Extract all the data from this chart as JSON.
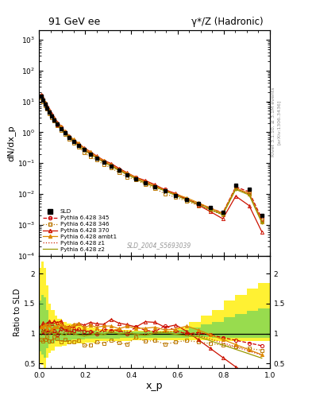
{
  "title_left": "91 GeV ee",
  "title_right": "γ*/Z (Hadronic)",
  "xlabel": "x_p",
  "ylabel_main": "dN/dx_p",
  "ylabel_ratio": "Ratio to SLD",
  "watermark": "SLD_2004_S5693039",
  "right_label_1": "Rivet 3.1.10, ≥ 3.1M events",
  "right_label_2": "[arXiv:1306.3436]",
  "ylim_main_log": [
    -4,
    3
  ],
  "ylim_ratio": [
    0.42,
    2.3
  ],
  "sld_x": [
    0.01,
    0.018,
    0.026,
    0.034,
    0.044,
    0.054,
    0.066,
    0.08,
    0.095,
    0.112,
    0.13,
    0.15,
    0.172,
    0.196,
    0.222,
    0.25,
    0.28,
    0.312,
    0.346,
    0.382,
    0.42,
    0.46,
    0.502,
    0.546,
    0.592,
    0.64,
    0.69,
    0.742,
    0.796,
    0.852,
    0.91,
    0.965
  ],
  "sld_y": [
    14.5,
    11.0,
    8.2,
    6.2,
    4.6,
    3.4,
    2.5,
    1.82,
    1.32,
    0.96,
    0.7,
    0.51,
    0.373,
    0.273,
    0.2,
    0.147,
    0.108,
    0.0793,
    0.0582,
    0.0427,
    0.0313,
    0.023,
    0.0169,
    0.0124,
    0.0091,
    0.00668,
    0.0049,
    0.00359,
    0.00263,
    0.0192,
    0.0141,
    0.002
  ],
  "col_345": "#cc0000",
  "col_346": "#bb7700",
  "col_370": "#cc1100",
  "col_ambt1": "#dd8800",
  "col_z1": "#cc2200",
  "col_z2": "#999900",
  "band_yellow": "#ffee00",
  "band_green": "#44cc66"
}
